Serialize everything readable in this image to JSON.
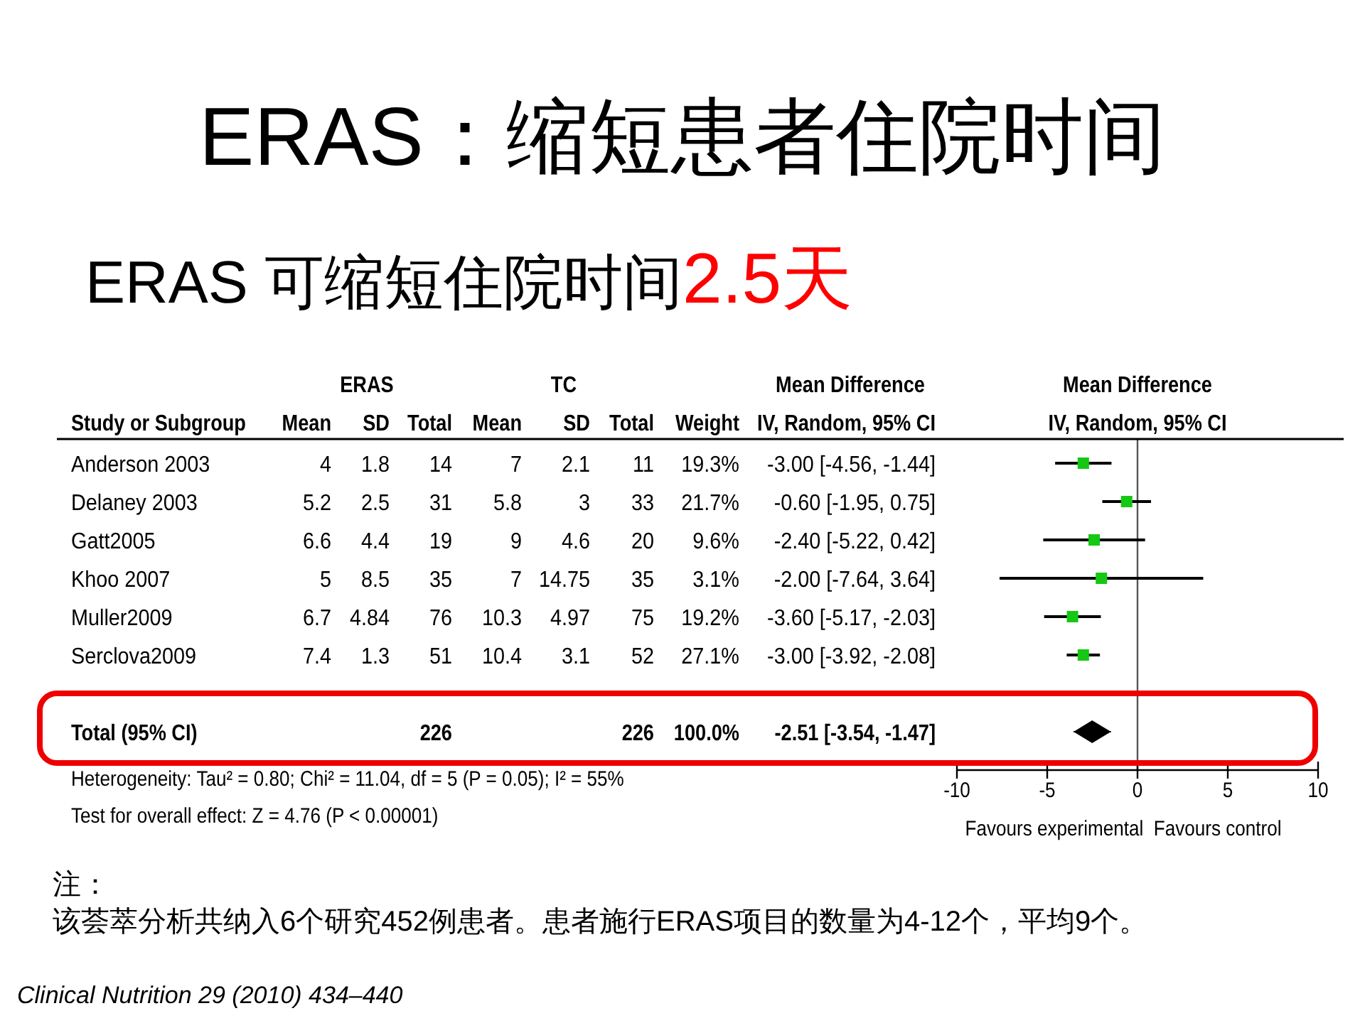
{
  "chart_data": [
    {
      "type": "other",
      "title": "ERAS：缩短患者住院时间",
      "subtitle": "ERAS 可缩短住院时间2.5天",
      "annotations": [
        "注：",
        "该荟萃分析共纳入6个研究452例患者。患者施行ERAS项目的数量为4-12个，平均9个。",
        "Clinical Nutrition 29 (2010) 434–440"
      ]
    },
    {
      "type": "other",
      "title": "ERAS",
      "ylabel": "Study or Subgroup",
      "y_categories": [
        "Anderson 2003",
        "Delaney 2003",
        "Gatt2005",
        "Khoo 2007",
        "Muller2009",
        "Serclova2009",
        null,
        "Total (95% CI)"
      ],
      "categories": [
        "Mean",
        "SD",
        "Total"
      ],
      "data_labels": true,
      "series": [
        {
          "values": [
            4,
            1.8,
            14
          ]
        },
        {
          "values": [
            5.2,
            2.5,
            31
          ]
        },
        {
          "values": [
            6.6,
            4.4,
            19
          ]
        },
        {
          "values": [
            5,
            8.5,
            35
          ]
        },
        {
          "values": [
            6.7,
            4.84,
            76
          ]
        },
        {
          "values": [
            7.4,
            1.3,
            51
          ]
        },
        {
          "values": [
            null,
            null,
            null
          ]
        },
        {
          "values": [
            null,
            null,
            226
          ]
        }
      ]
    },
    {
      "type": "other",
      "title": "TC",
      "categories": [
        "Mean",
        "SD",
        "Total"
      ],
      "data_labels": true,
      "series": [
        {
          "values": [
            7,
            2.1,
            11
          ]
        },
        {
          "values": [
            5.8,
            3,
            33
          ]
        },
        {
          "values": [
            9,
            4.6,
            20
          ]
        },
        {
          "values": [
            7,
            14.75,
            35
          ]
        },
        {
          "values": [
            10.3,
            4.97,
            75
          ]
        },
        {
          "values": [
            10.4,
            3.1,
            52
          ]
        },
        {
          "values": [
            null,
            null,
            null
          ]
        },
        {
          "values": [
            null,
            null,
            226
          ]
        }
      ]
    },
    {
      "type": "other",
      "categories": [
        "Weight"
      ],
      "series": [
        {
          "values": [
            19.3
          ],
          "value_labels": [
            "19.3%"
          ]
        },
        {
          "values": [
            21.7
          ],
          "value_labels": [
            "21.7%"
          ]
        },
        {
          "values": [
            9.6
          ],
          "value_labels": [
            "9.6%"
          ]
        },
        {
          "values": [
            3.1
          ],
          "value_labels": [
            "3.1%"
          ]
        },
        {
          "values": [
            19.2
          ],
          "value_labels": [
            "19.2%"
          ]
        },
        {
          "values": [
            27.1
          ],
          "value_labels": [
            "27.1%"
          ]
        },
        {
          "values": [
            null
          ],
          "value_labels": [
            null
          ]
        },
        {
          "values": [
            100
          ],
          "value_labels": [
            "100.0%"
          ]
        }
      ]
    },
    {
      "type": "other",
      "title": "Mean Difference",
      "categories": [
        "IV, Random, 95% CI"
      ],
      "series": [
        {
          "values": [
            -3
          ],
          "value_labels": [
            "-3.00 [-4.56, -1.44]"
          ]
        },
        {
          "values": [
            -0.6
          ],
          "value_labels": [
            "-0.60 [-1.95, 0.75]"
          ]
        },
        {
          "values": [
            -2.4
          ],
          "value_labels": [
            "-2.40 [-5.22, 0.42]"
          ]
        },
        {
          "values": [
            -2
          ],
          "value_labels": [
            "-2.00 [-7.64, 3.64]"
          ]
        },
        {
          "values": [
            -3.6
          ],
          "value_labels": [
            "-3.60 [-5.17, -2.03]"
          ]
        },
        {
          "values": [
            -3
          ],
          "value_labels": [
            "-3.00 [-3.92, -2.08]"
          ]
        },
        {
          "values": [
            null
          ],
          "value_labels": [
            null
          ]
        },
        {
          "values": [
            -2.51
          ],
          "value_labels": [
            "-2.51 [-3.54, -1.47]"
          ]
        }
      ]
    },
    {
      "type": "scatter",
      "title": "Mean Difference",
      "subtitle": "IV, Random, 95% CI",
      "orientation": "horizontal",
      "categories": [
        null,
        null,
        null,
        null,
        null,
        null,
        null,
        null
      ],
      "tick_labels": "x",
      "marker": "square",
      "series": [
        {
          "color": "#14c814",
          "values": [
            -3,
            -0.6,
            -2.4,
            -2,
            -3.6,
            -3,
            null,
            null
          ],
          "errors": [
            [
              -4.56,
              -1.44
            ],
            [
              -1.95,
              0.75
            ],
            [
              -5.22,
              0.42
            ],
            [
              -7.64,
              3.64
            ],
            [
              -5.17,
              -2.03
            ],
            [
              -3.92,
              -2.08
            ],
            null,
            null
          ]
        },
        {
          "marker": "diamond",
          "color": "#000000",
          "values": [
            null,
            null,
            null,
            null,
            null,
            null,
            null,
            -2.51
          ],
          "errors": [
            null,
            null,
            null,
            null,
            null,
            null,
            null,
            [
              -3.54,
              -1.47
            ]
          ]
        }
      ],
      "xlim": [
        -10,
        10
      ],
      "xticks": [
        -10,
        -5,
        0,
        5,
        10
      ],
      "xlabel": "Favours experimental  Favours control",
      "ref_lines": [
        {
          "axis": "x",
          "value": 0,
          "color": "#555555"
        }
      ],
      "annotations": [
        "Heterogeneity: Tau² = 0.80; Chi² = 11.04, df = 5 (P = 0.05); I² = 55%",
        "Test for overall effect: Z = 4.76 (P < 0.00001)"
      ]
    }
  ]
}
